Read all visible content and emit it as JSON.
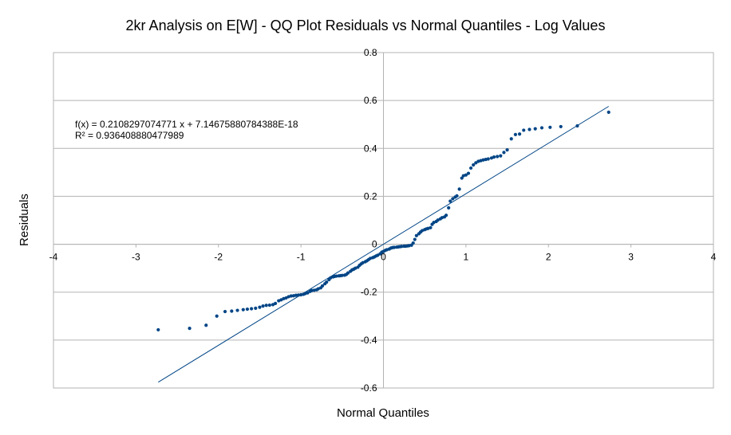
{
  "chart_data": {
    "type": "scatter",
    "title": "2kr Analysis on E[W] - QQ Plot Residuals vs Normal Quantiles - Log Values",
    "xlabel": "Normal Quantiles",
    "ylabel": "Residuals",
    "xlim": [
      -4,
      4
    ],
    "ylim": [
      -0.6,
      0.8
    ],
    "xticks": [
      "-4",
      "-3",
      "-2",
      "-1",
      "0",
      "1",
      "2",
      "3",
      "4"
    ],
    "yticks": [
      "-0.6",
      "-0.4",
      "-0.2",
      "0",
      "0.2",
      "0.4",
      "0.6",
      "0.8"
    ],
    "grid": true,
    "point_color": "#004586",
    "line_color": "#004586",
    "trendline": {
      "slope": 0.2108297074771,
      "intercept": 7.14675880784388e-18,
      "x_range": [
        -2.73,
        2.73
      ],
      "equation_label": "f(x) = 0.2108297074771 x + 7.14675880784388E-18",
      "r2_label": "R² = 0.936408880477989"
    },
    "points": [
      [
        -2.73,
        -0.357
      ],
      [
        -2.35,
        -0.351
      ],
      [
        -2.15,
        -0.338
      ],
      [
        -2.02,
        -0.3
      ],
      [
        -1.92,
        -0.281
      ],
      [
        -1.84,
        -0.279
      ],
      [
        -1.77,
        -0.276
      ],
      [
        -1.7,
        -0.273
      ],
      [
        -1.65,
        -0.271
      ],
      [
        -1.6,
        -0.269
      ],
      [
        -1.55,
        -0.267
      ],
      [
        -1.5,
        -0.263
      ],
      [
        -1.46,
        -0.258
      ],
      [
        -1.42,
        -0.255
      ],
      [
        -1.38,
        -0.254
      ],
      [
        -1.34,
        -0.252
      ],
      [
        -1.31,
        -0.247
      ],
      [
        -1.27,
        -0.236
      ],
      [
        -1.24,
        -0.232
      ],
      [
        -1.21,
        -0.227
      ],
      [
        -1.18,
        -0.224
      ],
      [
        -1.15,
        -0.219
      ],
      [
        -1.12,
        -0.216
      ],
      [
        -1.09,
        -0.215
      ],
      [
        -1.06,
        -0.213
      ],
      [
        -1.03,
        -0.212
      ],
      [
        -1.0,
        -0.211
      ],
      [
        -0.97,
        -0.209
      ],
      [
        -0.95,
        -0.206
      ],
      [
        -0.92,
        -0.203
      ],
      [
        -0.89,
        -0.197
      ],
      [
        -0.87,
        -0.193
      ],
      [
        -0.84,
        -0.192
      ],
      [
        -0.81,
        -0.19
      ],
      [
        -0.79,
        -0.186
      ],
      [
        -0.76,
        -0.182
      ],
      [
        -0.74,
        -0.174
      ],
      [
        -0.71,
        -0.165
      ],
      [
        -0.69,
        -0.158
      ],
      [
        -0.66,
        -0.148
      ],
      [
        -0.64,
        -0.14
      ],
      [
        -0.61,
        -0.136
      ],
      [
        -0.59,
        -0.134
      ],
      [
        -0.57,
        -0.133
      ],
      [
        -0.54,
        -0.132
      ],
      [
        -0.52,
        -0.131
      ],
      [
        -0.5,
        -0.13
      ],
      [
        -0.47,
        -0.129
      ],
      [
        -0.45,
        -0.126
      ],
      [
        -0.43,
        -0.12
      ],
      [
        -0.4,
        -0.113
      ],
      [
        -0.38,
        -0.107
      ],
      [
        -0.36,
        -0.104
      ],
      [
        -0.34,
        -0.1
      ],
      [
        -0.31,
        -0.096
      ],
      [
        -0.29,
        -0.088
      ],
      [
        -0.27,
        -0.082
      ],
      [
        -0.25,
        -0.077
      ],
      [
        -0.22,
        -0.073
      ],
      [
        -0.2,
        -0.069
      ],
      [
        -0.18,
        -0.064
      ],
      [
        -0.16,
        -0.059
      ],
      [
        -0.13,
        -0.056
      ],
      [
        -0.11,
        -0.053
      ],
      [
        -0.09,
        -0.049
      ],
      [
        -0.07,
        -0.046
      ],
      [
        -0.04,
        -0.04
      ],
      [
        -0.02,
        -0.033
      ],
      [
        0.0,
        -0.03
      ],
      [
        0.02,
        -0.026
      ],
      [
        0.04,
        -0.023
      ],
      [
        0.07,
        -0.02
      ],
      [
        0.09,
        -0.016
      ],
      [
        0.11,
        -0.014
      ],
      [
        0.13,
        -0.013
      ],
      [
        0.16,
        -0.012
      ],
      [
        0.18,
        -0.011
      ],
      [
        0.2,
        -0.01
      ],
      [
        0.22,
        -0.009
      ],
      [
        0.25,
        -0.008
      ],
      [
        0.27,
        -0.008
      ],
      [
        0.29,
        -0.007
      ],
      [
        0.31,
        -0.006
      ],
      [
        0.34,
        -0.004
      ],
      [
        0.36,
        0.005
      ],
      [
        0.38,
        0.02
      ],
      [
        0.4,
        0.036
      ],
      [
        0.43,
        0.044
      ],
      [
        0.45,
        0.051
      ],
      [
        0.47,
        0.057
      ],
      [
        0.5,
        0.061
      ],
      [
        0.52,
        0.064
      ],
      [
        0.54,
        0.066
      ],
      [
        0.57,
        0.069
      ],
      [
        0.59,
        0.083
      ],
      [
        0.61,
        0.091
      ],
      [
        0.64,
        0.095
      ],
      [
        0.66,
        0.101
      ],
      [
        0.69,
        0.106
      ],
      [
        0.71,
        0.111
      ],
      [
        0.74,
        0.114
      ],
      [
        0.76,
        0.121
      ],
      [
        0.79,
        0.152
      ],
      [
        0.81,
        0.18
      ],
      [
        0.84,
        0.19
      ],
      [
        0.87,
        0.197
      ],
      [
        0.89,
        0.202
      ],
      [
        0.92,
        0.23
      ],
      [
        0.95,
        0.276
      ],
      [
        0.97,
        0.286
      ],
      [
        1.0,
        0.289
      ],
      [
        1.03,
        0.296
      ],
      [
        1.06,
        0.318
      ],
      [
        1.09,
        0.331
      ],
      [
        1.12,
        0.34
      ],
      [
        1.15,
        0.346
      ],
      [
        1.18,
        0.349
      ],
      [
        1.21,
        0.352
      ],
      [
        1.24,
        0.354
      ],
      [
        1.27,
        0.356
      ],
      [
        1.31,
        0.36
      ],
      [
        1.34,
        0.364
      ],
      [
        1.38,
        0.366
      ],
      [
        1.42,
        0.369
      ],
      [
        1.46,
        0.383
      ],
      [
        1.5,
        0.394
      ],
      [
        1.55,
        0.44
      ],
      [
        1.6,
        0.458
      ],
      [
        1.65,
        0.46
      ],
      [
        1.7,
        0.476
      ],
      [
        1.77,
        0.479
      ],
      [
        1.84,
        0.482
      ],
      [
        1.92,
        0.486
      ],
      [
        2.02,
        0.488
      ],
      [
        2.15,
        0.491
      ],
      [
        2.35,
        0.494
      ],
      [
        2.73,
        0.551
      ]
    ]
  }
}
